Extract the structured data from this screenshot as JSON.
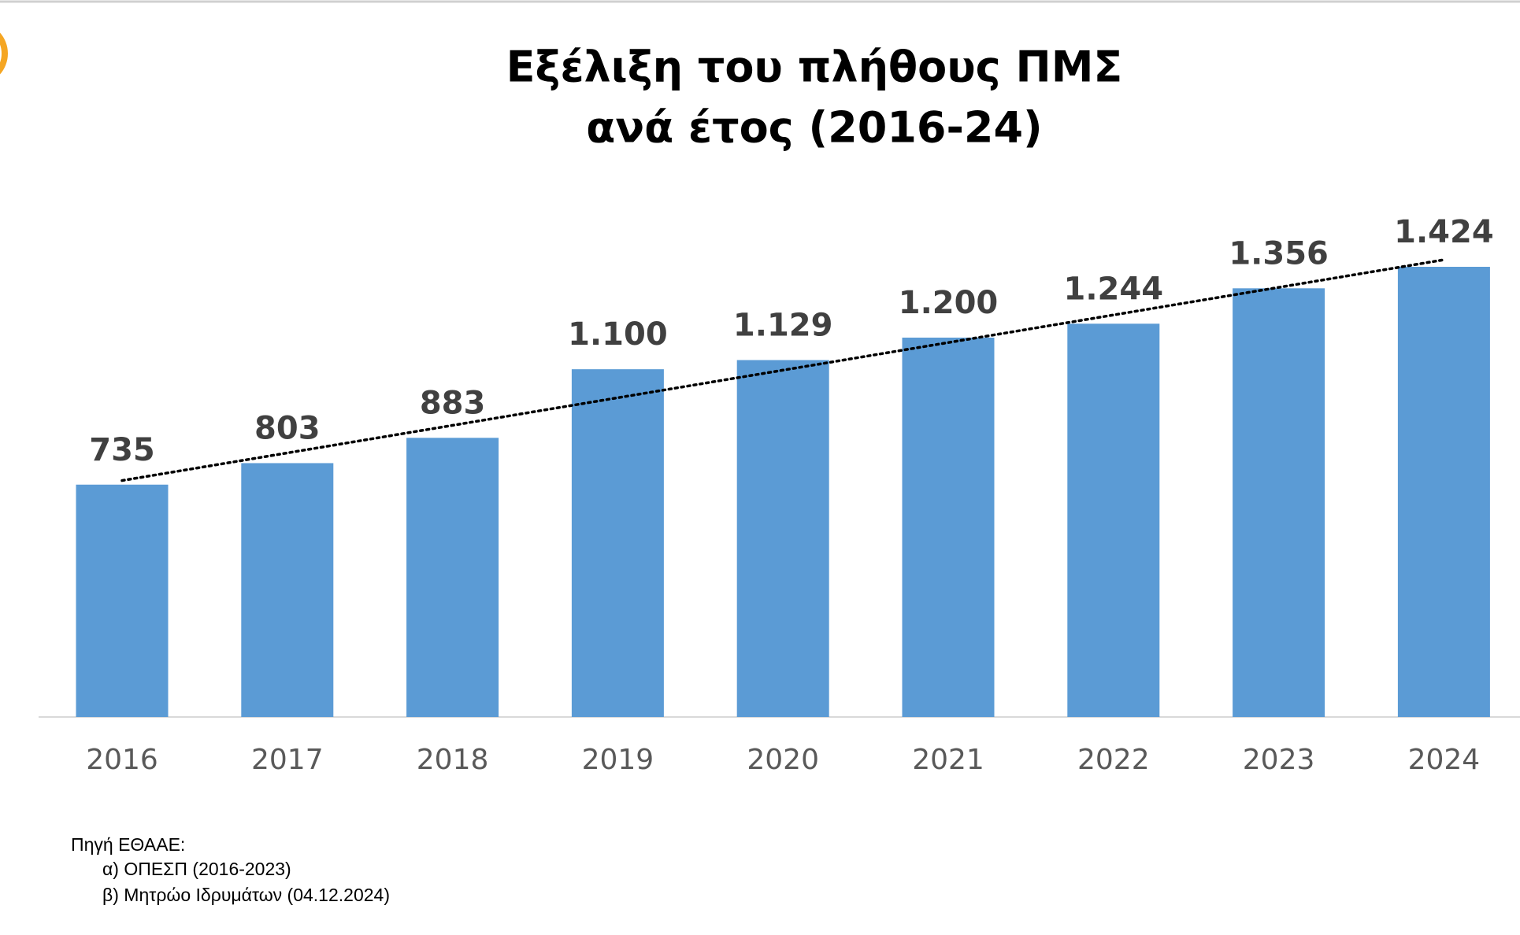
{
  "chart_data": {
    "type": "bar",
    "title": [
      "Εξέλιξη του πλήθους ΠΜΣ",
      "ανά έτος (2016-24)"
    ],
    "categories": [
      "2016",
      "2017",
      "2018",
      "2019",
      "2020",
      "2021",
      "2022",
      "2023",
      "2024"
    ],
    "values": [
      735,
      803,
      883,
      1100,
      1129,
      1200,
      1244,
      1356,
      1424
    ],
    "value_labels": [
      "735",
      "803",
      "883",
      "1.100",
      "1.129",
      "1.200",
      "1.244",
      "1.356",
      "1.424"
    ],
    "color": "#5b9bd5",
    "trendline": true,
    "notes": [
      "Πηγή ΕΘΑΑΕ:",
      "α) ΟΠΕΣΠ (2016-2023)",
      "β) Μητρώο Ιδρυμάτων (04.12.2024)"
    ]
  }
}
